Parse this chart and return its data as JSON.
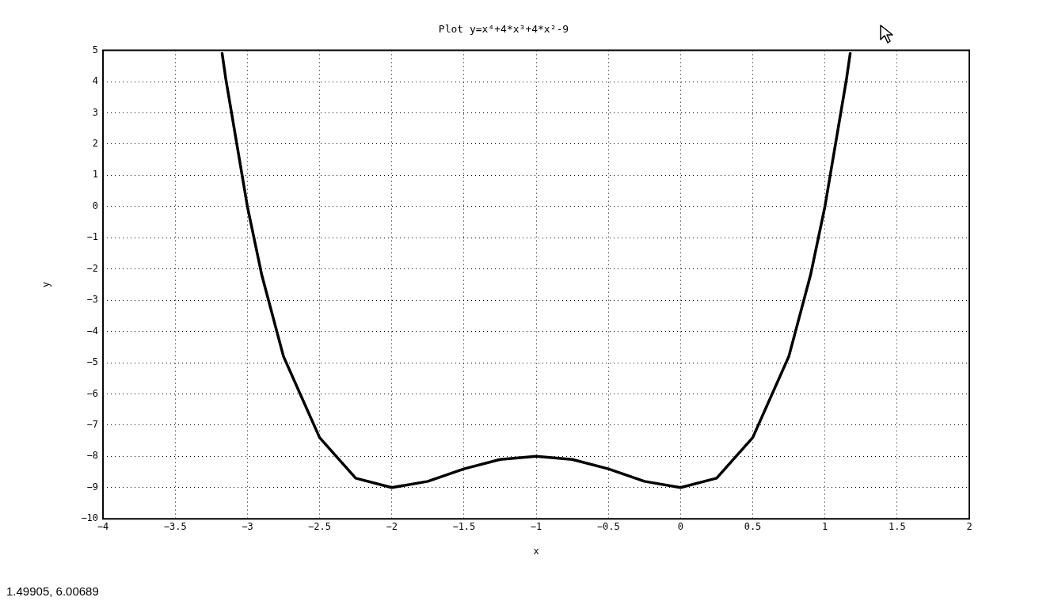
{
  "chart_data": {
    "type": "line",
    "title": "Plot y=x⁴+4*x³+4*x²-9",
    "xlabel": "x",
    "ylabel": "y",
    "series": [
      {
        "color": "#000000",
        "x": [
          -3.175,
          -3.15,
          -3,
          -2.9,
          -2.75,
          -2.5,
          -2.25,
          -2,
          -1.75,
          -1.5,
          -1.25,
          -1,
          -0.75,
          -0.5,
          -0.25,
          0,
          0.25,
          0.5,
          0.75,
          0.9,
          1,
          1.15,
          1.175
        ],
        "values": [
          4.9,
          4.1,
          0,
          -2.2,
          -4.8,
          -7.4,
          -8.7,
          -9,
          -8.8,
          -8.4,
          -8.1,
          -8,
          -8.1,
          -8.4,
          -8.8,
          -9,
          -8.7,
          -7.4,
          -4.8,
          -2.2,
          0,
          4.1,
          4.9
        ]
      }
    ],
    "xlim": [
      -4,
      2
    ],
    "xticks": [
      -4,
      -3.5,
      -3,
      -2.5,
      -2,
      -1.5,
      -1,
      -0.5,
      0,
      0.5,
      1,
      1.5,
      2
    ],
    "ylim": [
      -10,
      5
    ],
    "yticks": [
      -10,
      -9,
      -8,
      -7,
      -6,
      -5,
      -4,
      -3,
      -2,
      -1,
      0,
      1,
      2,
      3,
      4,
      5
    ],
    "grid": true,
    "legend": false,
    "marker": "none",
    "line_style": "solid",
    "annotations": [
      "1.49905, 6.00689"
    ]
  }
}
